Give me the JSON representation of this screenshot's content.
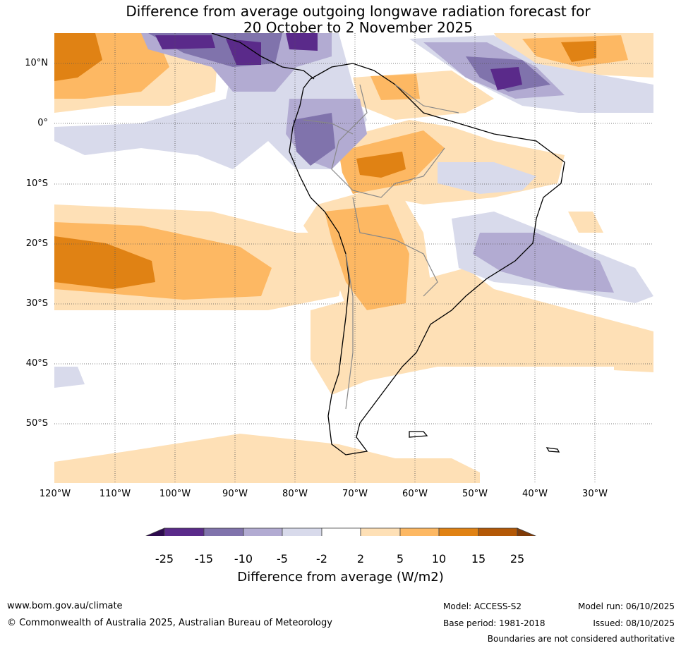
{
  "title_line1": "Difference from average outgoing longwave radiation forecast for",
  "title_line2": "20 October to 2 November 2025",
  "lat_labels": [
    "10°N",
    "0°",
    "10°S",
    "20°S",
    "30°S",
    "40°S",
    "50°S"
  ],
  "lon_labels": [
    "120°W",
    "110°W",
    "100°W",
    "90°W",
    "80°W",
    "70°W",
    "60°W",
    "50°W",
    "40°W",
    "30°W"
  ],
  "colorbar": {
    "ticks": [
      "-25",
      "-15",
      "-10",
      "-5",
      "-2",
      "2",
      "5",
      "10",
      "15",
      "25"
    ],
    "colors": [
      "#2d0a4e",
      "#5a2a8a",
      "#8073ac",
      "#b2abd2",
      "#d8daeb",
      "#ffffff",
      "#fee0b6",
      "#fdb863",
      "#e08214",
      "#b35806",
      "#7f3b08"
    ],
    "label": "Difference from average (W/m2)"
  },
  "footer": {
    "website": "www.bom.gov.au/climate",
    "copyright": "© Commonwealth of Australia 2025, Australian Bureau of Meteorology",
    "model": "Model: ACCESS-S2",
    "base_period": "Base period: 1981-2018",
    "model_run": "Model run: 06/10/2025",
    "issued": "Issued: 08/10/2025",
    "disclaimer": "Boundaries are not considered authoritative"
  }
}
